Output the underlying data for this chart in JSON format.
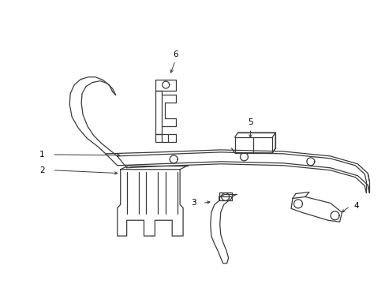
{
  "background_color": "#ffffff",
  "line_color": "#3a3a3a",
  "label_color": "#000000",
  "fig_width": 4.89,
  "fig_height": 3.6,
  "dpi": 100,
  "lw": 0.9,
  "label_fs": 7.5
}
